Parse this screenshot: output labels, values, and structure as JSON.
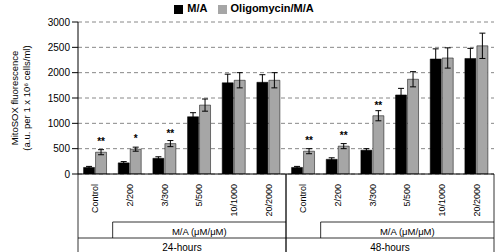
{
  "chart_data": {
    "type": "bar",
    "ylabel": "MitoSOX fluorescence (a.u. per 1 x 10⁶ cells/ml)",
    "x_group_label": "M/A (μM/μM)",
    "groups": [
      "24-hours",
      "48-hours"
    ],
    "categories": [
      "Control",
      "2/200",
      "3/300",
      "5/500",
      "10/1000",
      "20/2000",
      "Control",
      "2/200",
      "3/300",
      "5/500",
      "10/1000",
      "20/2000"
    ],
    "series": [
      {
        "name": "M/A",
        "color": "#000000",
        "values": [
          130,
          220,
          310,
          1130,
          1800,
          1810,
          130,
          290,
          470,
          1560,
          2270,
          2280
        ],
        "errors": [
          20,
          25,
          30,
          80,
          170,
          150,
          20,
          30,
          30,
          130,
          200,
          200
        ]
      },
      {
        "name": "Oligomycin/M/A",
        "color": "#a6a6a6",
        "values": [
          430,
          490,
          600,
          1360,
          1850,
          1850,
          450,
          550,
          1150,
          1870,
          2290,
          2530
        ],
        "errors": [
          50,
          40,
          60,
          120,
          150,
          150,
          50,
          50,
          100,
          150,
          200,
          250
        ],
        "significance": [
          "**",
          "*",
          "**",
          null,
          null,
          null,
          "**",
          "**",
          "**",
          null,
          null,
          null
        ]
      }
    ],
    "ylim": [
      0,
      3000
    ],
    "yticks": [
      0,
      500,
      1000,
      1500,
      2000,
      2500,
      3000
    ],
    "grid": true,
    "legend": "top"
  }
}
